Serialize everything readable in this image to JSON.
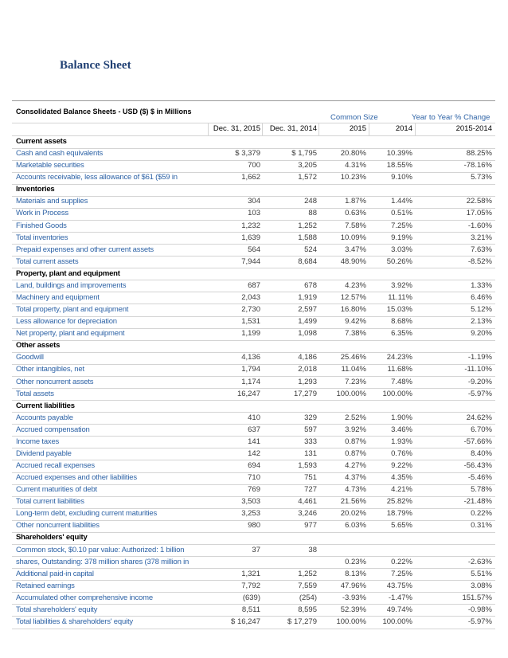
{
  "title": "Balance Sheet",
  "table": {
    "caption": "Consolidated Balance Sheets - USD ($) $ in Millions",
    "group_headers": [
      "Common Size",
      "Year to Year % Change"
    ],
    "columns": [
      "Dec. 31, 2015",
      "Dec. 31, 2014",
      "2015",
      "2014",
      "2015-2014"
    ],
    "rows": [
      {
        "label": "Current assets",
        "section": true,
        "cells": []
      },
      {
        "label": "Cash and cash equivalents",
        "cells": [
          "$ 3,379",
          "$ 1,795",
          "20.80%",
          "10.39%",
          "88.25%"
        ]
      },
      {
        "label": "Marketable securities",
        "cells": [
          "700",
          "3,205",
          "4.31%",
          "18.55%",
          "-78.16%"
        ]
      },
      {
        "label": "Accounts receivable, less allowance of $61 ($59 in",
        "cells": [
          "1,662",
          "1,572",
          "10.23%",
          "9.10%",
          "5.73%"
        ]
      },
      {
        "label": "Inventories",
        "section": true,
        "cells": []
      },
      {
        "label": "Materials and supplies",
        "cells": [
          "304",
          "248",
          "1.87%",
          "1.44%",
          "22.58%"
        ]
      },
      {
        "label": "Work in Process",
        "cells": [
          "103",
          "88",
          "0.63%",
          "0.51%",
          "17.05%"
        ]
      },
      {
        "label": "Finished Goods",
        "cells": [
          "1,232",
          "1,252",
          "7.58%",
          "7.25%",
          "-1.60%"
        ]
      },
      {
        "label": "Total inventories",
        "cells": [
          "1,639",
          "1,588",
          "10.09%",
          "9.19%",
          "3.21%"
        ]
      },
      {
        "label": "Prepaid expenses and other current assets",
        "underline": true,
        "cells": [
          "564",
          "524",
          "3.47%",
          "3.03%",
          "7.63%"
        ]
      },
      {
        "label": "Total current assets",
        "cells": [
          "7,944",
          "8,684",
          "48.90%",
          "50.26%",
          "-8.52%"
        ]
      },
      {
        "label": "Property, plant and equipment",
        "section": true,
        "cells": []
      },
      {
        "label": "Land, buildings and improvements",
        "cells": [
          "687",
          "678",
          "4.23%",
          "3.92%",
          "1.33%"
        ]
      },
      {
        "label": "Machinery and equipment",
        "cells": [
          "2,043",
          "1,919",
          "12.57%",
          "11.11%",
          "6.46%"
        ]
      },
      {
        "label": "Total property, plant and equipment",
        "cells": [
          "2,730",
          "2,597",
          "16.80%",
          "15.03%",
          "5.12%"
        ]
      },
      {
        "label": "Less allowance for depreciation",
        "cells": [
          "1,531",
          "1,499",
          "9.42%",
          "8.68%",
          "2.13%"
        ]
      },
      {
        "label": "Net property, plant and equipment",
        "cells": [
          "1,199",
          "1,098",
          "7.38%",
          "6.35%",
          "9.20%"
        ]
      },
      {
        "label": "Other assets",
        "section": true,
        "cells": []
      },
      {
        "label": "Goodwill",
        "cells": [
          "4,136",
          "4,186",
          "25.46%",
          "24.23%",
          "-1.19%"
        ]
      },
      {
        "label": "Other intangibles, net",
        "cells": [
          "1,794",
          "2,018",
          "11.04%",
          "11.68%",
          "-11.10%"
        ]
      },
      {
        "label": "Other noncurrent assets",
        "underline": true,
        "cells": [
          "1,174",
          "1,293",
          "7.23%",
          "7.48%",
          "-9.20%"
        ]
      },
      {
        "label": "Total assets",
        "cells": [
          "16,247",
          "17,279",
          "100.00%",
          "100.00%",
          "-5.97%"
        ]
      },
      {
        "label": "Current liabilities",
        "section": true,
        "cells": []
      },
      {
        "label": "Accounts payable",
        "cells": [
          "410",
          "329",
          "2.52%",
          "1.90%",
          "24.62%"
        ]
      },
      {
        "label": "Accrued compensation",
        "cells": [
          "637",
          "597",
          "3.92%",
          "3.46%",
          "6.70%"
        ]
      },
      {
        "label": "Income taxes",
        "cells": [
          "141",
          "333",
          "0.87%",
          "1.93%",
          "-57.66%"
        ]
      },
      {
        "label": "Dividend payable",
        "cells": [
          "142",
          "131",
          "0.87%",
          "0.76%",
          "8.40%"
        ]
      },
      {
        "label": "Accrued recall expenses",
        "cells": [
          "694",
          "1,593",
          "4.27%",
          "9.22%",
          "-56.43%"
        ]
      },
      {
        "label": "Accrued expenses and other liabilities",
        "cells": [
          "710",
          "751",
          "4.37%",
          "4.35%",
          "-5.46%"
        ]
      },
      {
        "label": "Current maturities of debt",
        "cells": [
          "769",
          "727",
          "4.73%",
          "4.21%",
          "5.78%"
        ]
      },
      {
        "label": "Total current liabilities",
        "cells": [
          "3,503",
          "4,461",
          "21.56%",
          "25.82%",
          "-21.48%"
        ]
      },
      {
        "label": "Long-term debt, excluding current maturities",
        "cells": [
          "3,253",
          "3,246",
          "20.02%",
          "18.79%",
          "0.22%"
        ]
      },
      {
        "label": "Other noncurrent liabilities",
        "cells": [
          "980",
          "977",
          "6.03%",
          "5.65%",
          "0.31%"
        ]
      },
      {
        "label": "Shareholders' equity",
        "section": true,
        "cells": []
      },
      {
        "label": "Common stock, $0.10 par value: Authorized: 1 billion",
        "cells": [
          "37",
          "38"
        ]
      },
      {
        "label": "shares, Outstanding: 378 million shares (378 million in",
        "cells": [
          null,
          null,
          "0.23%",
          "0.22%",
          "-2.63%"
        ]
      },
      {
        "label": "Additional paid-in capital",
        "cells": [
          "1,321",
          "1,252",
          "8.13%",
          "7.25%",
          "5.51%"
        ]
      },
      {
        "label": "Retained earnings",
        "cells": [
          "7,792",
          "7,559",
          "47.96%",
          "43.75%",
          "3.08%"
        ]
      },
      {
        "label": "Accumulated other comprehensive income",
        "cells": [
          "(639)",
          "(254)",
          "-3.93%",
          "-1.47%",
          "151.57%"
        ]
      },
      {
        "label": "Total shareholders' equity",
        "cells": [
          "8,511",
          "8,595",
          "52.39%",
          "49.74%",
          "-0.98%"
        ]
      },
      {
        "label": "Total liabilities & shareholders' equity",
        "cells": [
          "$ 16,247",
          "$ 17,279",
          "100.00%",
          "100.00%",
          "-5.97%"
        ]
      }
    ]
  }
}
